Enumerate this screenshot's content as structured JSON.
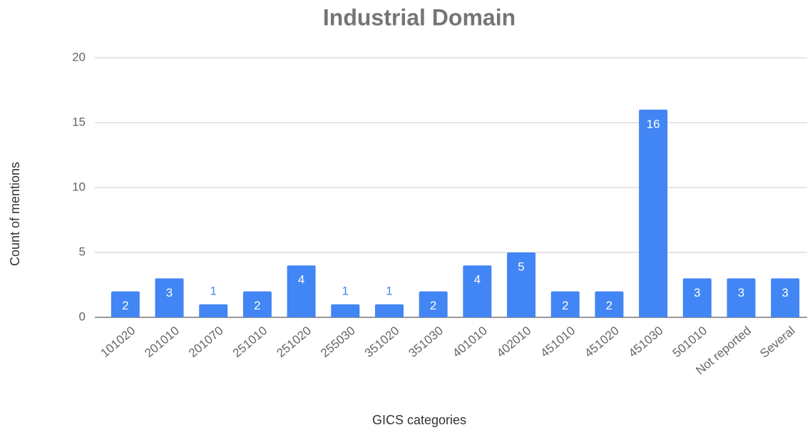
{
  "chart_data": {
    "type": "bar",
    "title": "Industrial Domain",
    "x_label": "GICS categories",
    "y_label": "Count of mentions",
    "categories": [
      "101020",
      "201010",
      "201070",
      "251010",
      "251020",
      "255030",
      "351020",
      "351030",
      "401010",
      "402010",
      "451010",
      "451020",
      "451030",
      "501010",
      "Not reported",
      "Several"
    ],
    "values": [
      2,
      3,
      1,
      2,
      4,
      1,
      1,
      2,
      4,
      5,
      2,
      2,
      16,
      3,
      3,
      3
    ],
    "color": "#4285f4",
    "ylim": [
      0,
      20
    ],
    "yticks": [
      0,
      5,
      10,
      15,
      20
    ],
    "grid": true
  }
}
